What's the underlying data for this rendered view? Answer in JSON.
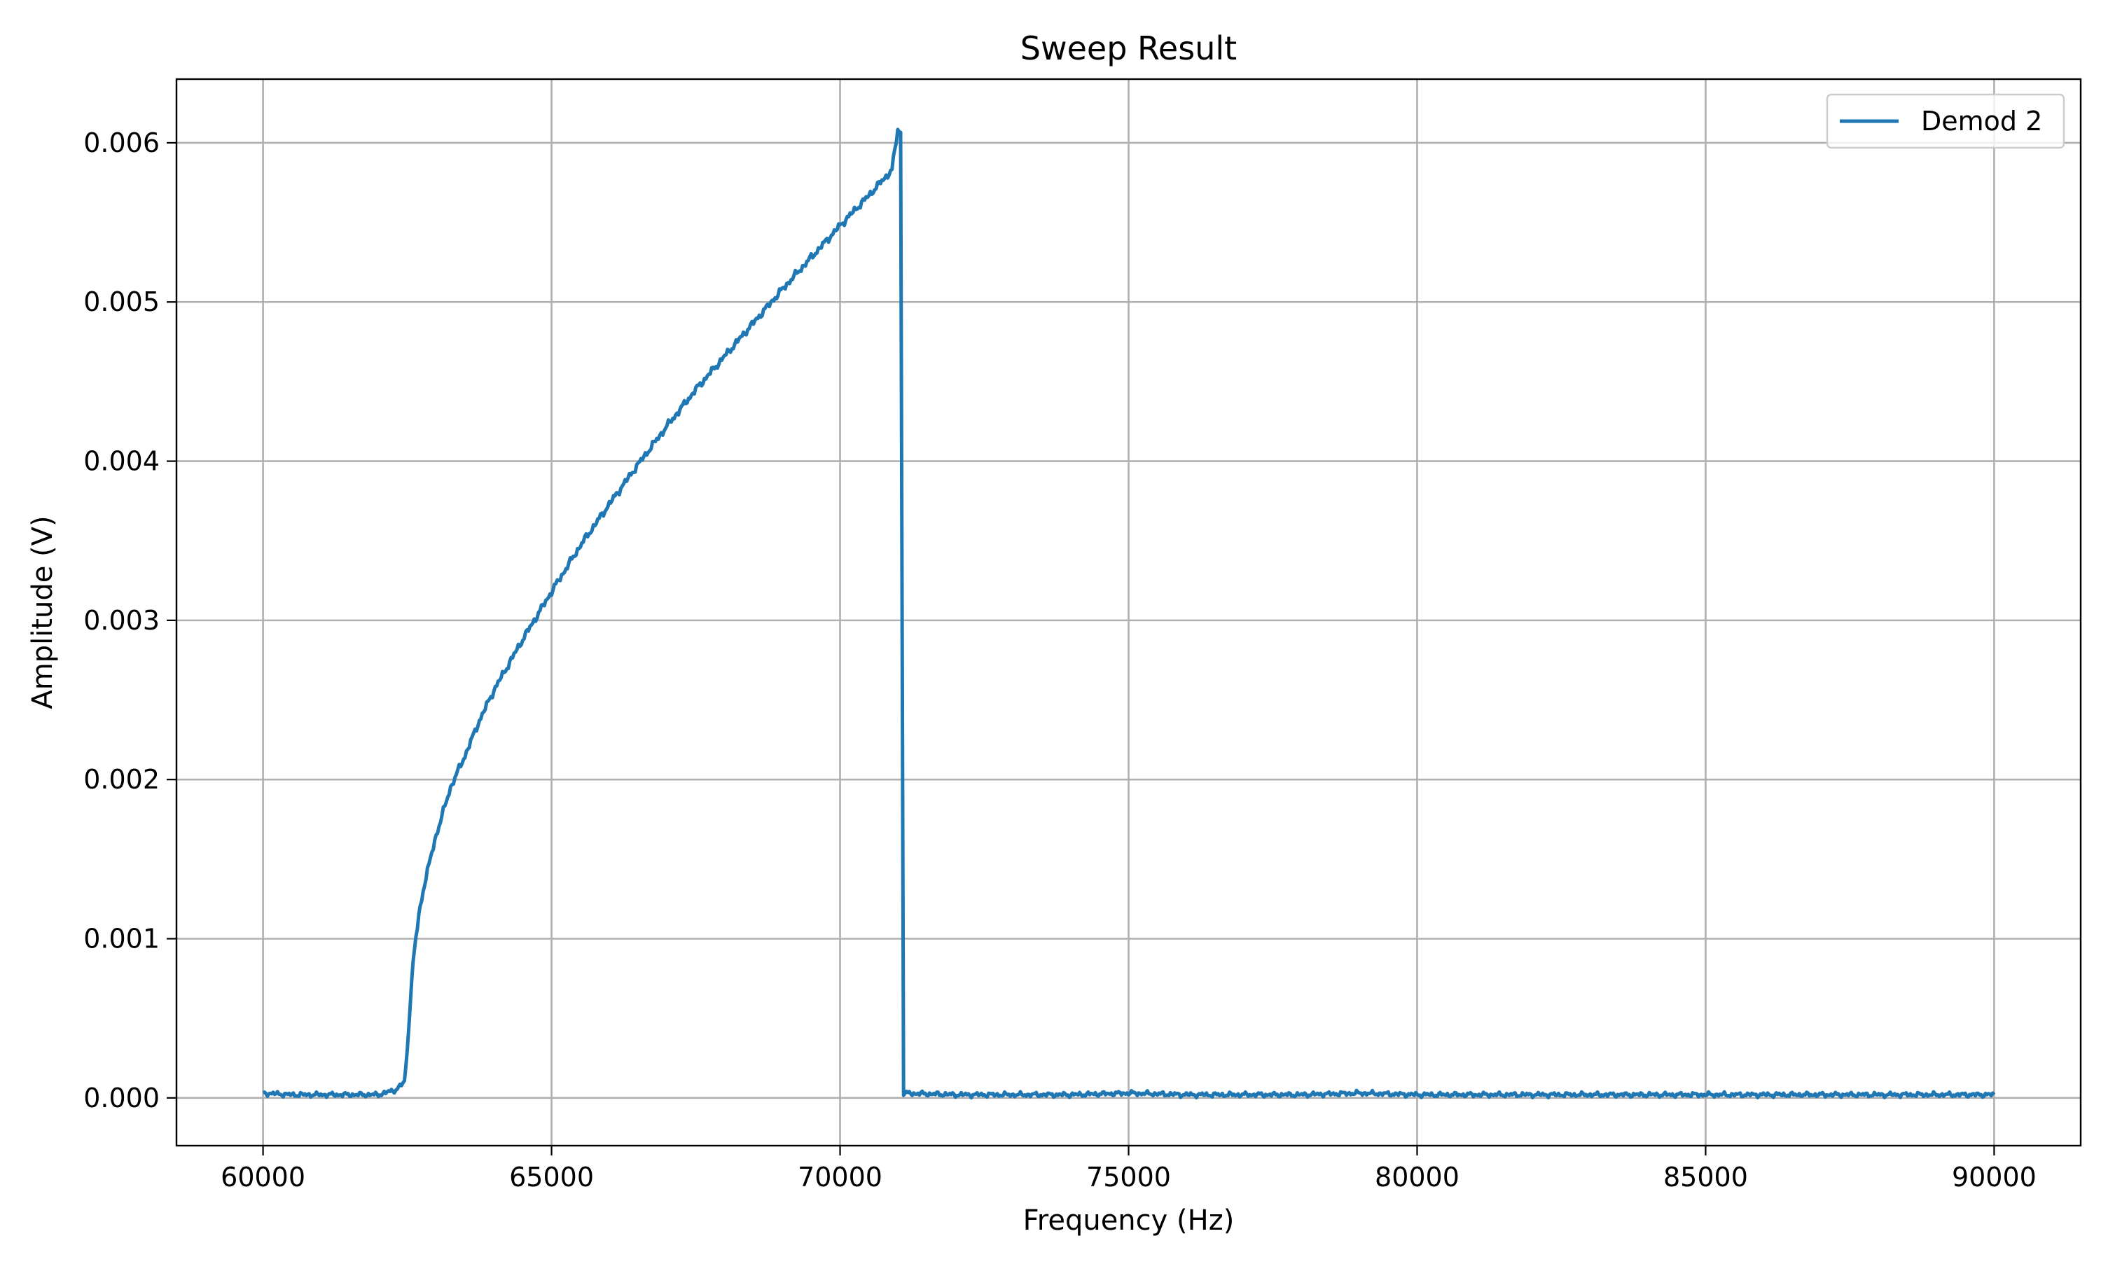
{
  "chart_data": {
    "type": "line",
    "title": "Sweep Result",
    "xlabel": "Frequency (Hz)",
    "ylabel": "Amplitude (V)",
    "xlim": [
      58500,
      91500
    ],
    "ylim": [
      -0.0003,
      0.0064
    ],
    "x_ticks": [
      60000,
      65000,
      70000,
      75000,
      80000,
      85000,
      90000
    ],
    "x_tick_labels": [
      "60000",
      "65000",
      "70000",
      "75000",
      "80000",
      "85000",
      "90000"
    ],
    "y_ticks": [
      0.0,
      0.001,
      0.002,
      0.003,
      0.004,
      0.005,
      0.006
    ],
    "y_tick_labels": [
      "0.000",
      "0.001",
      "0.002",
      "0.003",
      "0.004",
      "0.005",
      "0.006"
    ],
    "grid": true,
    "legend": {
      "position": "top-right",
      "entries": [
        "Demod 2"
      ]
    },
    "series": [
      {
        "name": "Demod 2",
        "color": "#1f77b4",
        "x": [
          60000,
          60500,
          61000,
          61500,
          62000,
          62300,
          62450,
          62500,
          62550,
          62600,
          62700,
          62800,
          62900,
          63000,
          63250,
          63500,
          63750,
          64000,
          64500,
          65000,
          65500,
          66000,
          66500,
          67000,
          67500,
          68000,
          68500,
          69000,
          69500,
          70000,
          70500,
          70900,
          71000,
          71050,
          71100,
          72000,
          73000,
          74000,
          75000,
          76000,
          77000,
          78000,
          79000,
          80000,
          81000,
          82000,
          83000,
          84000,
          85000,
          86000,
          87000,
          88000,
          89000,
          90000
        ],
        "y": [
          3e-05,
          2e-05,
          2e-05,
          2e-05,
          2e-05,
          5e-05,
          0.0001,
          0.0003,
          0.0006,
          0.00085,
          0.00115,
          0.00135,
          0.0015,
          0.00165,
          0.00195,
          0.00215,
          0.00237,
          0.00256,
          0.00288,
          0.00318,
          0.00347,
          0.00373,
          0.00398,
          0.00422,
          0.00445,
          0.00466,
          0.00487,
          0.00508,
          0.00528,
          0.00548,
          0.00567,
          0.00583,
          0.00608,
          0.00607,
          3e-05,
          2e-05,
          2e-05,
          2e-05,
          3e-05,
          2e-05,
          2e-05,
          2e-05,
          3e-05,
          2e-05,
          2e-05,
          2e-05,
          2e-05,
          2e-05,
          2e-05,
          2e-05,
          2e-05,
          2e-05,
          2e-05,
          2e-05
        ]
      }
    ]
  }
}
